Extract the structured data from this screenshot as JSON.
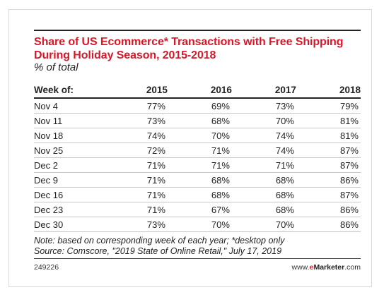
{
  "chart_data": {
    "type": "table",
    "title": "Share of US Ecommerce* Transactions with Free Shipping During Holiday Season, 2015-2018",
    "subtitle": "% of total",
    "columns": [
      "Week of:",
      "2015",
      "2016",
      "2017",
      "2018"
    ],
    "rows": [
      {
        "week": "Nov 4",
        "values": [
          "77%",
          "69%",
          "73%",
          "79%"
        ]
      },
      {
        "week": "Nov 11",
        "values": [
          "73%",
          "68%",
          "70%",
          "81%"
        ]
      },
      {
        "week": "Nov 18",
        "values": [
          "74%",
          "70%",
          "74%",
          "81%"
        ]
      },
      {
        "week": "Nov 25",
        "values": [
          "72%",
          "71%",
          "74%",
          "87%"
        ]
      },
      {
        "week": "Dec 2",
        "values": [
          "71%",
          "71%",
          "71%",
          "87%"
        ]
      },
      {
        "week": "Dec 9",
        "values": [
          "71%",
          "68%",
          "68%",
          "86%"
        ]
      },
      {
        "week": "Dec 16",
        "values": [
          "71%",
          "68%",
          "68%",
          "87%"
        ]
      },
      {
        "week": "Dec 23",
        "values": [
          "71%",
          "67%",
          "68%",
          "86%"
        ]
      },
      {
        "week": "Dec 30",
        "values": [
          "73%",
          "70%",
          "70%",
          "86%"
        ]
      }
    ],
    "note": "Note: based on corresponding week of each year; *desktop only",
    "source": "Source: Comscore, \"2019 State of Online Retail,\" July 17, 2019"
  },
  "footer": {
    "chart_id": "249226",
    "brand_prefix": "www.",
    "brand_e": "e",
    "brand_name": "Marketer",
    "brand_suffix": ".com"
  },
  "colors": {
    "title": "#d7182a",
    "text": "#222222",
    "rule": "#c8c8c8"
  }
}
